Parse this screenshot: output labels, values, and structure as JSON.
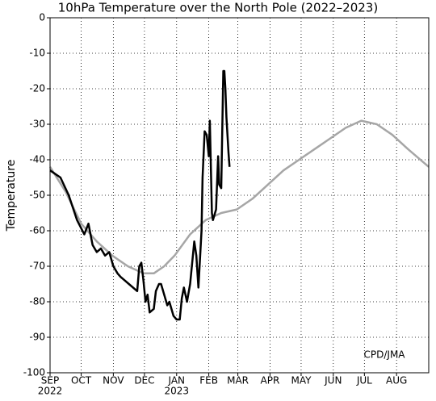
{
  "chart_data": {
    "type": "line",
    "title": "10hPa Temperature over the North Pole (2022–2023)",
    "y_label": "Temperature",
    "annotation": "CPD/JMA",
    "xlim": [
      0,
      365
    ],
    "xticks": [
      {
        "value": 0,
        "label": "SEP"
      },
      {
        "value": 30,
        "label": "OCT"
      },
      {
        "value": 61,
        "label": "NOV"
      },
      {
        "value": 91,
        "label": "DEC"
      },
      {
        "value": 122,
        "label": "JAN"
      },
      {
        "value": 153,
        "label": "FEB"
      },
      {
        "value": 181,
        "label": "MAR"
      },
      {
        "value": 212,
        "label": "APR"
      },
      {
        "value": 242,
        "label": "MAY"
      },
      {
        "value": 273,
        "label": "JUN"
      },
      {
        "value": 303,
        "label": "JUL"
      },
      {
        "value": 334,
        "label": "AUG"
      }
    ],
    "year_labels": [
      {
        "value": 0,
        "label": "2022"
      },
      {
        "value": 122,
        "label": "2023"
      }
    ],
    "ylim": [
      -100,
      0
    ],
    "yticks": [
      0,
      -10,
      -20,
      -30,
      -40,
      -50,
      -60,
      -70,
      -80,
      -90,
      -100
    ],
    "grid": true,
    "series": [
      {
        "color": "#a6a6a6",
        "x": [
          0,
          15,
          30,
          45,
          60,
          75,
          90,
          100,
          110,
          120,
          135,
          150,
          165,
          180,
          195,
          210,
          225,
          240,
          255,
          270,
          285,
          300,
          315,
          330,
          345,
          365
        ],
        "values": [
          -42,
          -49,
          -58,
          -63,
          -67,
          -70,
          -72,
          -72,
          -70,
          -67,
          -61,
          -57,
          -55,
          -54,
          -51,
          -47,
          -43,
          -40,
          -37,
          -34,
          -31,
          -29,
          -30,
          -33,
          -37,
          -42
        ]
      },
      {
        "color": "#000000",
        "x": [
          0,
          10,
          18,
          26,
          33,
          37,
          41,
          45,
          49,
          53,
          57,
          61,
          65,
          68,
          72,
          76,
          84,
          86,
          88,
          90,
          92,
          94,
          96,
          100,
          102,
          105,
          107,
          110,
          113,
          115,
          119,
          122,
          125,
          127,
          129,
          132,
          135,
          139,
          141,
          143,
          146,
          147,
          149,
          151,
          153,
          154,
          156,
          157,
          160,
          162,
          163,
          165,
          167,
          168,
          169,
          170,
          172,
          173
        ],
        "values": [
          -43,
          -45,
          -50,
          -57,
          -61,
          -58,
          -64,
          -66,
          -65,
          -67,
          -66,
          -70,
          -72,
          -73,
          -74,
          -75,
          -77,
          -70,
          -69,
          -74,
          -80,
          -78,
          -83,
          -82,
          -77,
          -75,
          -75,
          -78,
          -81,
          -80,
          -84,
          -85,
          -85,
          -79,
          -76,
          -80,
          -75,
          -63,
          -67,
          -76,
          -60,
          -45,
          -32,
          -33,
          -39,
          -29,
          -55,
          -57,
          -54,
          -39,
          -47,
          -48,
          -15,
          -15,
          -20,
          -28,
          -38,
          -42
        ]
      }
    ]
  }
}
